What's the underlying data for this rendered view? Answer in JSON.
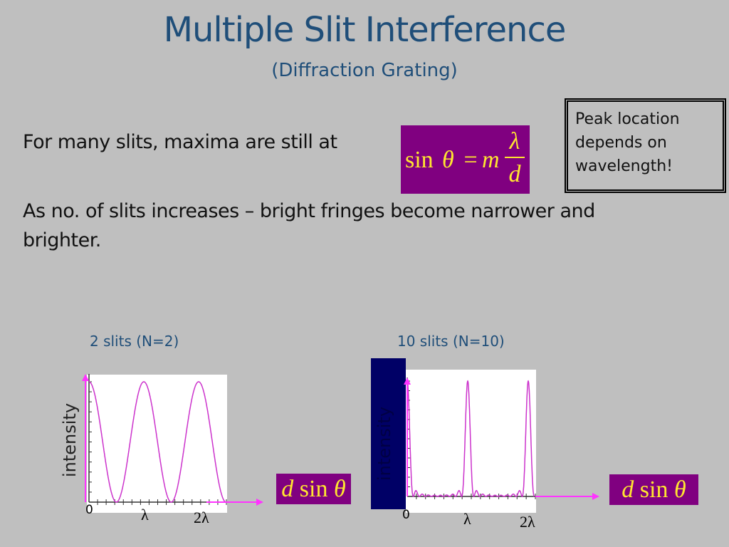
{
  "title": "Multiple Slit Interference",
  "subtitle": "(Diffraction Grating)",
  "line1": "For many slits, maxima are still at",
  "equation": {
    "lhs": "sin",
    "theta": "θ",
    "eq": " = ",
    "m": "m",
    "num": "λ",
    "den": "d"
  },
  "note": {
    "line1": "Peak location",
    "line2": "depends on",
    "line3": "wavelength!"
  },
  "line2": "As no. of slits increases – bright fringes become narrower and",
  "line3": "brighter.",
  "plot_axis_label": {
    "d": "d",
    "sin": " sin ",
    "theta": "θ"
  },
  "colors": {
    "background": "#bfbfbf",
    "title": "#1f4e79",
    "equation_box": "#800080",
    "equation_text": "#ffe630",
    "curve": "#cc33cc",
    "arrow": "#ff33ff",
    "overlay": "#000066"
  },
  "chart_data": [
    {
      "type": "line",
      "title": "2 slits (N=2)",
      "N": 2,
      "ylabel": "intensity",
      "xlabel": "d sin θ",
      "xticks": [
        "0",
        "λ",
        "2λ"
      ],
      "xlim_wavelengths": [
        0,
        2.5
      ],
      "formula": "cos^2(π d sinθ/λ)"
    },
    {
      "type": "line",
      "title": "10 slits (N=10)",
      "N": 10,
      "ylabel": "intensity",
      "xlabel": "d sin θ",
      "xticks": [
        "0",
        "λ",
        "2λ"
      ],
      "xlim_wavelengths": [
        0,
        2.1
      ],
      "formula": "[sin(Nπx)/(N sin(πx))]^2"
    }
  ]
}
